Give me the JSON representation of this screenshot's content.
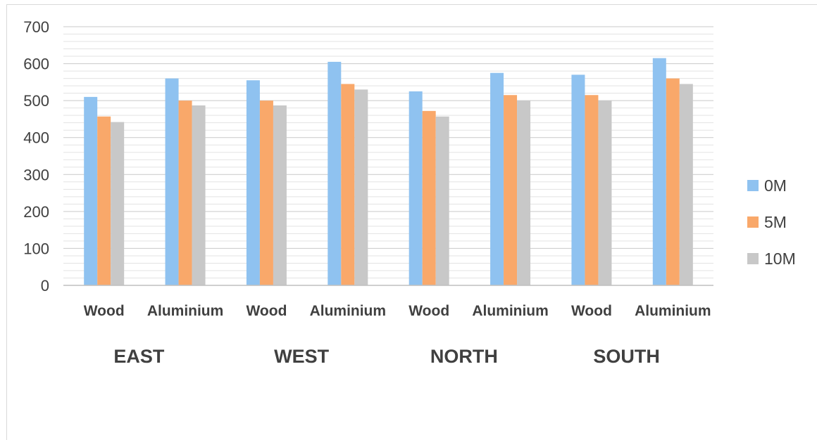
{
  "chart_data": {
    "type": "bar",
    "categories": [
      "Wood",
      "Aluminium",
      "Wood",
      "Aluminium",
      "Wood",
      "Aluminium",
      "Wood",
      "Aluminium"
    ],
    "groups": [
      "EAST",
      "WEST",
      "NORTH",
      "SOUTH"
    ],
    "series": [
      {
        "name": "0M",
        "color": "#8fc2f0",
        "values": [
          510,
          560,
          555,
          605,
          525,
          575,
          570,
          615
        ]
      },
      {
        "name": "5M",
        "color": "#f9a86a",
        "values": [
          457,
          500,
          500,
          545,
          472,
          515,
          515,
          560
        ]
      },
      {
        "name": "10M",
        "color": "#c8c8c8",
        "values": [
          442,
          487,
          487,
          530,
          457,
          500,
          500,
          545
        ]
      }
    ],
    "title": "",
    "xlabel": "",
    "ylabel": "",
    "ylim": [
      0,
      700
    ],
    "yticks": [
      0,
      100,
      200,
      300,
      400,
      500,
      600,
      700
    ],
    "grid": true,
    "legend": "right"
  }
}
